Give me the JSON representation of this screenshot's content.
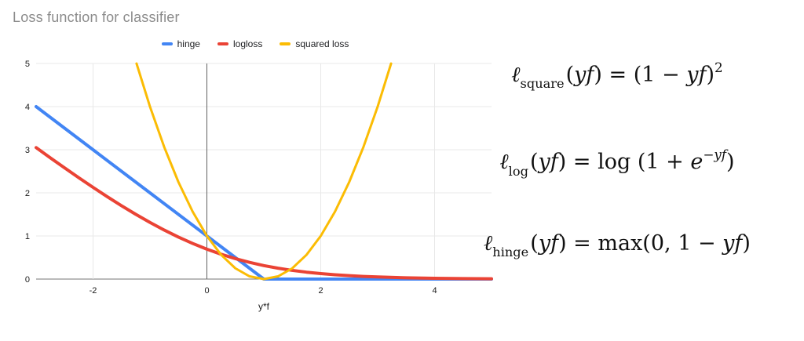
{
  "chart_data": {
    "type": "line",
    "title": "Loss function for classifier",
    "xlabel": "y*f",
    "ylabel": "",
    "xlim": [
      -3,
      5
    ],
    "ylim": [
      0,
      5
    ],
    "x_ticks": [
      -2,
      0,
      2,
      4
    ],
    "y_ticks": [
      0,
      1,
      2,
      3,
      4,
      5
    ],
    "grid": true,
    "legend_position": "top",
    "grid_color": "#e8e8e8",
    "axis_color": "#757575",
    "zero_axis_color": "#616161",
    "series": [
      {
        "name": "hinge",
        "color": "#4285F4",
        "line_width": 4,
        "formula": "max(0, 1 − yf)",
        "x": [
          -3,
          -2,
          -1,
          0,
          0.5,
          1,
          2,
          3,
          4,
          5
        ],
        "y": [
          4,
          3,
          2,
          1,
          0.5,
          0,
          0,
          0,
          0,
          0
        ]
      },
      {
        "name": "logloss",
        "color": "#EA4335",
        "line_width": 4,
        "formula": "log(1 + e^(−yf))",
        "x": [
          -3,
          -2.75,
          -2.5,
          -2.25,
          -2,
          -1.75,
          -1.5,
          -1.25,
          -1,
          -0.75,
          -0.5,
          -0.25,
          0,
          0.25,
          0.5,
          0.75,
          1,
          1.25,
          1.5,
          1.75,
          2,
          2.25,
          2.5,
          2.75,
          3,
          3.5,
          4,
          4.5,
          5
        ],
        "y": [
          3.049,
          2.812,
          2.579,
          2.35,
          2.127,
          1.91,
          1.701,
          1.502,
          1.313,
          1.137,
          0.974,
          0.826,
          0.693,
          0.576,
          0.474,
          0.387,
          0.313,
          0.252,
          0.201,
          0.16,
          0.127,
          0.1,
          0.079,
          0.062,
          0.049,
          0.03,
          0.018,
          0.011,
          0.007
        ]
      },
      {
        "name": "squared loss",
        "color": "#FBBC04",
        "line_width": 3,
        "formula": "(1 − yf)^2",
        "x": [
          -1.236,
          -1,
          -0.75,
          -0.5,
          -0.25,
          0,
          0.25,
          0.5,
          0.75,
          1,
          1.25,
          1.5,
          1.75,
          2,
          2.25,
          2.5,
          2.75,
          3,
          3.236
        ],
        "y": [
          5,
          4,
          3.063,
          2.25,
          1.563,
          1,
          0.563,
          0.25,
          0.063,
          0,
          0.063,
          0.25,
          0.563,
          1,
          1.563,
          2.25,
          3.063,
          4,
          5
        ]
      }
    ]
  },
  "formulas": [
    {
      "name": "squared-loss-formula",
      "plain": "ℓ_square(yf) = (1 − yf)^2",
      "segments": [
        {
          "s": "it",
          "v": "ℓ"
        },
        {
          "s": "sub",
          "v": "square"
        },
        {
          "s": "rm",
          "v": "("
        },
        {
          "s": "it",
          "v": "yf"
        },
        {
          "s": "rm",
          "v": ") = (1 − "
        },
        {
          "s": "it",
          "v": "yf"
        },
        {
          "s": "rm",
          "v": ")"
        },
        {
          "s": "sup",
          "v": "2"
        }
      ]
    },
    {
      "name": "log-loss-formula",
      "plain": "ℓ_log(yf) = log (1 + e^(−yf))",
      "segments": [
        {
          "s": "it",
          "v": "ℓ"
        },
        {
          "s": "sub",
          "v": "log"
        },
        {
          "s": "rm",
          "v": "("
        },
        {
          "s": "it",
          "v": "yf"
        },
        {
          "s": "rm",
          "v": ") = log (1 + "
        },
        {
          "s": "it",
          "v": "e"
        },
        {
          "s": "supit",
          "v": "−yf"
        },
        {
          "s": "rm",
          "v": ")"
        }
      ]
    },
    {
      "name": "hinge-loss-formula",
      "plain": "ℓ_hinge(yf) = max(0, 1 − yf)",
      "segments": [
        {
          "s": "it",
          "v": "ℓ"
        },
        {
          "s": "sub",
          "v": "hinge"
        },
        {
          "s": "rm",
          "v": "("
        },
        {
          "s": "it",
          "v": "yf"
        },
        {
          "s": "rm",
          "v": ") = max(0, 1 − "
        },
        {
          "s": "it",
          "v": "yf"
        },
        {
          "s": "rm",
          "v": ")"
        }
      ]
    }
  ]
}
